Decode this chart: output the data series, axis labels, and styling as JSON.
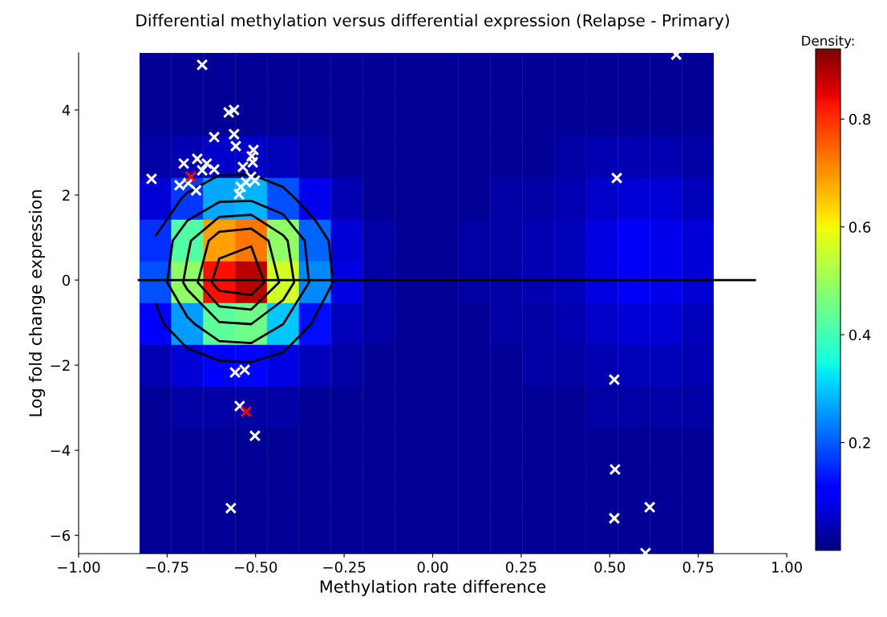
{
  "chart_data": [
    {
      "type": "heatmap",
      "clabel": "Density:",
      "clim": [
        0.0,
        0.93
      ],
      "cticks": [
        0.2,
        0.4,
        0.6,
        0.8
      ],
      "categories": [
        null,
        null,
        null,
        null,
        null,
        null,
        null,
        null,
        null,
        null,
        null,
        null,
        null,
        null,
        null,
        null,
        null,
        null
      ],
      "y_categories": [
        null,
        null,
        null,
        null,
        null,
        null,
        null,
        null,
        null,
        null,
        null,
        null
      ],
      "cells": [
        [
          0.02,
          0.02,
          0.02,
          0.02,
          0.02,
          0.02,
          0.02,
          0.02,
          0.02,
          0.02,
          0.02,
          0.02,
          0.02,
          0.02,
          0.02,
          0.02,
          0.02,
          0.02
        ],
        [
          0.02,
          0.02,
          0.02,
          0.02,
          0.02,
          0.02,
          0.02,
          0.02,
          0.02,
          0.02,
          0.02,
          0.02,
          0.02,
          0.02,
          0.02,
          0.02,
          0.02,
          0.02
        ],
        [
          0.03,
          0.04,
          0.06,
          0.06,
          0.05,
          0.03,
          0.02,
          0.02,
          0.02,
          0.02,
          0.02,
          0.02,
          0.02,
          0.03,
          0.04,
          0.04,
          0.04,
          0.03
        ],
        [
          0.07,
          0.17,
          0.27,
          0.28,
          0.19,
          0.09,
          0.04,
          0.02,
          0.02,
          0.02,
          0.02,
          0.03,
          0.03,
          0.04,
          0.06,
          0.07,
          0.07,
          0.05
        ],
        [
          0.16,
          0.42,
          0.69,
          0.73,
          0.49,
          0.21,
          0.07,
          0.03,
          0.02,
          0.02,
          0.03,
          0.03,
          0.04,
          0.05,
          0.08,
          0.1,
          0.09,
          0.07
        ],
        [
          0.19,
          0.49,
          0.83,
          0.88,
          0.56,
          0.24,
          0.08,
          0.03,
          0.02,
          0.02,
          0.03,
          0.03,
          0.04,
          0.05,
          0.08,
          0.1,
          0.09,
          0.07
        ],
        [
          0.11,
          0.26,
          0.43,
          0.45,
          0.3,
          0.13,
          0.05,
          0.03,
          0.02,
          0.02,
          0.02,
          0.03,
          0.03,
          0.04,
          0.06,
          0.07,
          0.07,
          0.05
        ],
        [
          0.04,
          0.07,
          0.11,
          0.12,
          0.08,
          0.05,
          0.03,
          0.02,
          0.02,
          0.02,
          0.02,
          0.02,
          0.03,
          0.03,
          0.04,
          0.05,
          0.05,
          0.04
        ],
        [
          0.02,
          0.03,
          0.03,
          0.03,
          0.03,
          0.02,
          0.02,
          0.02,
          0.02,
          0.02,
          0.02,
          0.02,
          0.02,
          0.02,
          0.03,
          0.03,
          0.03,
          0.03
        ],
        [
          0.02,
          0.02,
          0.02,
          0.02,
          0.02,
          0.02,
          0.02,
          0.02,
          0.02,
          0.02,
          0.02,
          0.02,
          0.02,
          0.02,
          0.02,
          0.02,
          0.02,
          0.02
        ],
        [
          0.02,
          0.02,
          0.02,
          0.02,
          0.02,
          0.02,
          0.02,
          0.02,
          0.02,
          0.02,
          0.02,
          0.02,
          0.02,
          0.02,
          0.02,
          0.02,
          0.02,
          0.02
        ],
        [
          0.02,
          0.02,
          0.02,
          0.02,
          0.02,
          0.02,
          0.02,
          0.02,
          0.02,
          0.02,
          0.02,
          0.02,
          0.02,
          0.02,
          0.02,
          0.02,
          0.02,
          0.02
        ]
      ]
    },
    {
      "type": "scatter",
      "title": "Differential methylation versus differential expression (Relapse - Primary)",
      "xlabel": "Methylation rate difference",
      "ylabel": "Log fold change expression",
      "xlim": [
        -1,
        1
      ],
      "ylim": [
        -6.43,
        5.34
      ],
      "xticks": [
        {
          "value": -1,
          "label": "−1.00"
        },
        {
          "value": -0.75,
          "label": "−0.75"
        },
        {
          "value": -0.5,
          "label": "−0.50"
        },
        {
          "value": -0.25,
          "label": "−0.25"
        },
        {
          "value": 0,
          "label": "0.00"
        },
        {
          "value": 0.25,
          "label": "0.25"
        },
        {
          "value": 0.5,
          "label": "0.50"
        },
        {
          "value": 0.75,
          "label": "0.75"
        },
        {
          "value": 1,
          "label": "1.00"
        }
      ],
      "yticks": [
        {
          "value": -6,
          "label": "−6"
        },
        {
          "value": -4,
          "label": "−4"
        },
        {
          "value": -2,
          "label": "−2"
        },
        0,
        2,
        4
      ],
      "series": [
        {
          "type": "line",
          "color": "#000000",
          "x": [
            -0.83,
            0.91
          ],
          "values": [
            0,
            0
          ]
        },
        {
          "type": "scatter",
          "marker": "cross",
          "color": "#ffffff",
          "x": [
            -0.651,
            -0.576,
            -0.561,
            -0.617,
            -0.561,
            -0.556,
            -0.506,
            -0.511,
            -0.703,
            -0.665,
            -0.638,
            -0.651,
            -0.617,
            -0.794,
            -0.715,
            -0.668,
            -0.536,
            -0.508,
            -0.513,
            -0.502,
            -0.527,
            -0.542,
            -0.547,
            -0.69,
            -0.558,
            -0.531,
            -0.545,
            -0.502,
            -0.57,
            0.52,
            0.513,
            0.515,
            0.613,
            0.513,
            0.601,
            0.688
          ],
          "values": [
            5.06,
            3.94,
            4.0,
            3.36,
            3.43,
            3.15,
            3.06,
            2.91,
            2.74,
            2.85,
            2.74,
            2.58,
            2.6,
            2.38,
            2.23,
            2.11,
            2.66,
            2.77,
            2.43,
            2.34,
            2.3,
            2.19,
            2.02,
            2.28,
            -2.17,
            -2.11,
            -2.96,
            -3.66,
            -5.36,
            2.4,
            -2.34,
            -4.45,
            -5.34,
            -5.6,
            -6.42,
            5.3
          ]
        },
        {
          "type": "scatter",
          "marker": "cross",
          "color": "#ff0000",
          "x": [
            -0.683,
            -0.527
          ],
          "values": [
            2.43,
            -3.09
          ]
        }
      ]
    }
  ]
}
